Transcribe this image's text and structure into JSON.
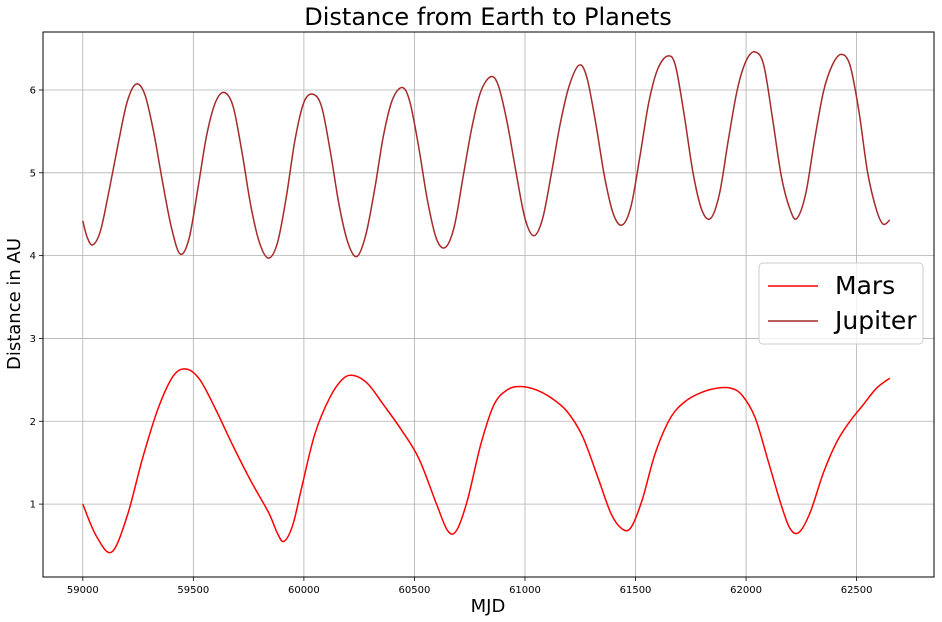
{
  "chart_data": {
    "type": "line",
    "title": "Distance from Earth to Planets",
    "xlabel": "MJD",
    "ylabel": "Distance in AU",
    "xlim": [
      58820,
      62850
    ],
    "ylim": [
      0.12,
      6.7
    ],
    "xticks": [
      59000,
      59500,
      60000,
      60500,
      61000,
      61500,
      62000,
      62500
    ],
    "yticks": [
      1,
      2,
      3,
      4,
      5,
      6
    ],
    "grid": true,
    "legend": "center-right",
    "series": [
      {
        "name": "Mars",
        "color": "#ff0000",
        "points": [
          [
            59000,
            1.0
          ],
          [
            59060,
            0.62
          ],
          [
            59130,
            0.42
          ],
          [
            59200,
            0.85
          ],
          [
            59270,
            1.55
          ],
          [
            59340,
            2.15
          ],
          [
            59410,
            2.55
          ],
          [
            59470,
            2.63
          ],
          [
            59530,
            2.5
          ],
          [
            59600,
            2.15
          ],
          [
            59680,
            1.7
          ],
          [
            59760,
            1.28
          ],
          [
            59840,
            0.9
          ],
          [
            59880,
            0.65
          ],
          [
            59910,
            0.55
          ],
          [
            59950,
            0.75
          ],
          [
            59990,
            1.2
          ],
          [
            60050,
            1.85
          ],
          [
            60120,
            2.3
          ],
          [
            60180,
            2.52
          ],
          [
            60230,
            2.55
          ],
          [
            60290,
            2.45
          ],
          [
            60360,
            2.2
          ],
          [
            60440,
            1.9
          ],
          [
            60520,
            1.55
          ],
          [
            60600,
            1.0
          ],
          [
            60650,
            0.68
          ],
          [
            60690,
            0.68
          ],
          [
            60740,
            1.05
          ],
          [
            60800,
            1.72
          ],
          [
            60860,
            2.2
          ],
          [
            60920,
            2.38
          ],
          [
            60980,
            2.42
          ],
          [
            61050,
            2.38
          ],
          [
            61120,
            2.28
          ],
          [
            61190,
            2.12
          ],
          [
            61260,
            1.82
          ],
          [
            61330,
            1.32
          ],
          [
            61390,
            0.88
          ],
          [
            61440,
            0.7
          ],
          [
            61480,
            0.72
          ],
          [
            61530,
            1.05
          ],
          [
            61590,
            1.62
          ],
          [
            61660,
            2.05
          ],
          [
            61730,
            2.25
          ],
          [
            61800,
            2.35
          ],
          [
            61870,
            2.4
          ],
          [
            61930,
            2.4
          ],
          [
            61980,
            2.32
          ],
          [
            62040,
            2.05
          ],
          [
            62100,
            1.52
          ],
          [
            62160,
            0.98
          ],
          [
            62200,
            0.7
          ],
          [
            62240,
            0.66
          ],
          [
            62290,
            0.9
          ],
          [
            62350,
            1.38
          ],
          [
            62410,
            1.75
          ],
          [
            62470,
            2.0
          ],
          [
            62530,
            2.2
          ],
          [
            62590,
            2.4
          ],
          [
            62650,
            2.52
          ]
        ]
      },
      {
        "name": "Jupiter",
        "color": "#a52a2a",
        "points": [
          [
            59000,
            4.42
          ],
          [
            59020,
            4.22
          ],
          [
            59045,
            4.13
          ],
          [
            59080,
            4.3
          ],
          [
            59120,
            4.8
          ],
          [
            59160,
            5.35
          ],
          [
            59200,
            5.85
          ],
          [
            59240,
            6.07
          ],
          [
            59280,
            5.95
          ],
          [
            59320,
            5.5
          ],
          [
            59360,
            4.9
          ],
          [
            59400,
            4.35
          ],
          [
            59440,
            4.02
          ],
          [
            59480,
            4.2
          ],
          [
            59520,
            4.8
          ],
          [
            59560,
            5.45
          ],
          [
            59600,
            5.85
          ],
          [
            59640,
            5.97
          ],
          [
            59680,
            5.8
          ],
          [
            59720,
            5.25
          ],
          [
            59760,
            4.6
          ],
          [
            59800,
            4.15
          ],
          [
            59840,
            3.97
          ],
          [
            59880,
            4.15
          ],
          [
            59920,
            4.7
          ],
          [
            59960,
            5.4
          ],
          [
            60000,
            5.85
          ],
          [
            60040,
            5.95
          ],
          [
            60080,
            5.8
          ],
          [
            60120,
            5.25
          ],
          [
            60160,
            4.6
          ],
          [
            60200,
            4.15
          ],
          [
            60240,
            3.99
          ],
          [
            60280,
            4.25
          ],
          [
            60320,
            4.8
          ],
          [
            60360,
            5.45
          ],
          [
            60400,
            5.88
          ],
          [
            60445,
            6.03
          ],
          [
            60480,
            5.85
          ],
          [
            60520,
            5.3
          ],
          [
            60560,
            4.65
          ],
          [
            60600,
            4.2
          ],
          [
            60640,
            4.1
          ],
          [
            60680,
            4.35
          ],
          [
            60720,
            4.95
          ],
          [
            60760,
            5.55
          ],
          [
            60800,
            5.98
          ],
          [
            60845,
            6.16
          ],
          [
            60880,
            6.05
          ],
          [
            60920,
            5.6
          ],
          [
            60960,
            5.0
          ],
          [
            61000,
            4.45
          ],
          [
            61040,
            4.24
          ],
          [
            61080,
            4.45
          ],
          [
            61120,
            5.0
          ],
          [
            61160,
            5.6
          ],
          [
            61200,
            6.05
          ],
          [
            61245,
            6.3
          ],
          [
            61280,
            6.15
          ],
          [
            61320,
            5.6
          ],
          [
            61360,
            4.95
          ],
          [
            61400,
            4.5
          ],
          [
            61440,
            4.37
          ],
          [
            61480,
            4.6
          ],
          [
            61520,
            5.2
          ],
          [
            61560,
            5.85
          ],
          [
            61600,
            6.25
          ],
          [
            61645,
            6.41
          ],
          [
            61680,
            6.3
          ],
          [
            61720,
            5.7
          ],
          [
            61760,
            5.0
          ],
          [
            61800,
            4.55
          ],
          [
            61840,
            4.45
          ],
          [
            61880,
            4.75
          ],
          [
            61920,
            5.4
          ],
          [
            61960,
            6.0
          ],
          [
            62000,
            6.35
          ],
          [
            62040,
            6.46
          ],
          [
            62080,
            6.3
          ],
          [
            62120,
            5.65
          ],
          [
            62160,
            4.95
          ],
          [
            62200,
            4.55
          ],
          [
            62230,
            4.45
          ],
          [
            62270,
            4.75
          ],
          [
            62310,
            5.4
          ],
          [
            62350,
            5.98
          ],
          [
            62390,
            6.3
          ],
          [
            62430,
            6.43
          ],
          [
            62470,
            6.3
          ],
          [
            62510,
            5.75
          ],
          [
            62550,
            5.0
          ],
          [
            62590,
            4.55
          ],
          [
            62620,
            4.38
          ],
          [
            62650,
            4.43
          ]
        ]
      }
    ]
  }
}
